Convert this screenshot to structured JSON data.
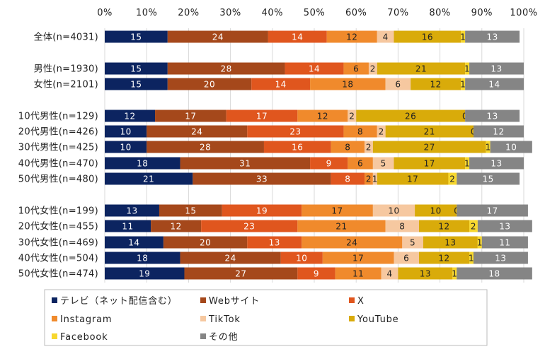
{
  "chart_data": {
    "type": "bar",
    "orientation": "horizontal",
    "stacked": true,
    "xlim": [
      0,
      100
    ],
    "x_tick_labels": [
      "0%",
      "10%",
      "20%",
      "30%",
      "40%",
      "50%",
      "60%",
      "70%",
      "80%",
      "90%",
      "100%"
    ],
    "legend_position": "bottom",
    "categories": [
      "全体(n=4031)",
      "男性(n=1930)",
      "女性(n=2101)",
      "10代男性(n=129)",
      "20代男性(n=426)",
      "30代男性(n=425)",
      "40代男性(n=470)",
      "50代男性(n=480)",
      "10代女性(n=199)",
      "20代女性(n=455)",
      "30代女性(n=469)",
      "40代女性(n=504)",
      "50代女性(n=474)"
    ],
    "groups": [
      [
        0
      ],
      [
        1,
        2
      ],
      [
        3,
        4,
        5,
        6,
        7
      ],
      [
        8,
        9,
        10,
        11,
        12
      ]
    ],
    "series": [
      {
        "name": "テレビ（ネット配信含む）",
        "color": "#0c2460",
        "label_color": "#ffffff",
        "values": [
          15,
          15,
          15,
          12,
          10,
          10,
          18,
          21,
          13,
          11,
          14,
          18,
          19
        ]
      },
      {
        "name": "Webサイト",
        "color": "#a5481b",
        "label_color": "#ffffff",
        "values": [
          24,
          28,
          20,
          17,
          24,
          28,
          31,
          33,
          15,
          12,
          20,
          24,
          27
        ]
      },
      {
        "name": "X",
        "color": "#e0561e",
        "label_color": "#ffffff",
        "values": [
          14,
          14,
          14,
          17,
          23,
          16,
          9,
          8,
          19,
          23,
          13,
          10,
          9
        ]
      },
      {
        "name": "Instagram",
        "color": "#f08a2c",
        "label_color": "#222222",
        "values": [
          12,
          6,
          18,
          12,
          8,
          8,
          6,
          2,
          17,
          21,
          24,
          17,
          11
        ]
      },
      {
        "name": "TikTok",
        "color": "#f6c8a0",
        "label_color": "#222222",
        "values": [
          4,
          2,
          6,
          2,
          2,
          2,
          5,
          1,
          10,
          8,
          5,
          6,
          4
        ]
      },
      {
        "name": "YouTube",
        "color": "#d9ab0a",
        "label_color": "#222222",
        "values": [
          16,
          21,
          12,
          26,
          21,
          27,
          17,
          17,
          10,
          12,
          13,
          12,
          13
        ]
      },
      {
        "name": "Facebook",
        "color": "#f7d72e",
        "label_color": "#222222",
        "values": [
          1,
          1,
          1,
          0,
          0,
          1,
          1,
          2,
          0,
          2,
          1,
          1,
          1
        ]
      },
      {
        "name": "その他",
        "color": "#858585",
        "label_color": "#ffffff",
        "values": [
          13,
          13,
          14,
          13,
          12,
          10,
          13,
          15,
          17,
          13,
          11,
          13,
          18
        ]
      }
    ]
  }
}
